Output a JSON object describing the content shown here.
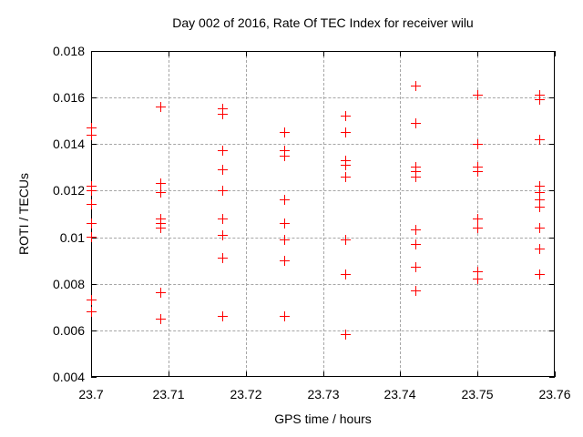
{
  "chart_data": {
    "type": "scatter",
    "title": "Day 002 of 2016, Rate Of TEC Index for receiver wilu",
    "xlabel": "GPS time / hours",
    "ylabel": "ROTI / TECUs",
    "xlim": [
      23.7,
      23.76
    ],
    "ylim": [
      0.004,
      0.018
    ],
    "xticks": [
      23.7,
      23.71,
      23.72,
      23.73,
      23.74,
      23.75,
      23.76
    ],
    "xtick_labels": [
      "23.7",
      "23.71",
      "23.72",
      "23.73",
      "23.74",
      "23.75",
      "23.76"
    ],
    "yticks": [
      0.004,
      0.006,
      0.008,
      0.01,
      0.012,
      0.014,
      0.016,
      0.018
    ],
    "ytick_labels": [
      "0.004",
      "0.006",
      "0.008",
      "0.01",
      "0.012",
      "0.014",
      "0.016",
      "0.018"
    ],
    "grid": true,
    "legend_position": "none",
    "marker": "plus",
    "marker_color": "#ff0000",
    "grid_color": "#a6a6a6",
    "axis_color": "#000000",
    "series": [
      {
        "name": "ROTI",
        "points": [
          [
            23.7,
            0.0147
          ],
          [
            23.7,
            0.0144
          ],
          [
            23.7,
            0.0122
          ],
          [
            23.7,
            0.012
          ],
          [
            23.7,
            0.0114
          ],
          [
            23.7,
            0.0106
          ],
          [
            23.7,
            0.01
          ],
          [
            23.7,
            0.0073
          ],
          [
            23.7,
            0.0068
          ],
          [
            23.709,
            0.0156
          ],
          [
            23.709,
            0.0123
          ],
          [
            23.709,
            0.0119
          ],
          [
            23.709,
            0.0108
          ],
          [
            23.709,
            0.0106
          ],
          [
            23.709,
            0.0104
          ],
          [
            23.709,
            0.0076
          ],
          [
            23.709,
            0.0065
          ],
          [
            23.717,
            0.0155
          ],
          [
            23.717,
            0.0153
          ],
          [
            23.717,
            0.0137
          ],
          [
            23.717,
            0.0129
          ],
          [
            23.717,
            0.012
          ],
          [
            23.717,
            0.0108
          ],
          [
            23.717,
            0.0101
          ],
          [
            23.717,
            0.0091
          ],
          [
            23.717,
            0.0066
          ],
          [
            23.725,
            0.0145
          ],
          [
            23.725,
            0.0137
          ],
          [
            23.725,
            0.0135
          ],
          [
            23.725,
            0.0116
          ],
          [
            23.725,
            0.0106
          ],
          [
            23.725,
            0.0099
          ],
          [
            23.725,
            0.009
          ],
          [
            23.725,
            0.0066
          ],
          [
            23.733,
            0.0152
          ],
          [
            23.733,
            0.0145
          ],
          [
            23.733,
            0.0133
          ],
          [
            23.733,
            0.0131
          ],
          [
            23.733,
            0.0126
          ],
          [
            23.733,
            0.0099
          ],
          [
            23.733,
            0.0084
          ],
          [
            23.733,
            0.0058
          ],
          [
            23.742,
            0.0165
          ],
          [
            23.742,
            0.0149
          ],
          [
            23.742,
            0.013
          ],
          [
            23.742,
            0.0128
          ],
          [
            23.742,
            0.0126
          ],
          [
            23.742,
            0.0103
          ],
          [
            23.742,
            0.0097
          ],
          [
            23.742,
            0.0087
          ],
          [
            23.742,
            0.0077
          ],
          [
            23.75,
            0.0161
          ],
          [
            23.75,
            0.014
          ],
          [
            23.75,
            0.013
          ],
          [
            23.75,
            0.0128
          ],
          [
            23.75,
            0.0108
          ],
          [
            23.75,
            0.0104
          ],
          [
            23.75,
            0.0085
          ],
          [
            23.75,
            0.0082
          ],
          [
            23.758,
            0.0161
          ],
          [
            23.758,
            0.0159
          ],
          [
            23.758,
            0.0142
          ],
          [
            23.758,
            0.0122
          ],
          [
            23.758,
            0.0119
          ],
          [
            23.758,
            0.0116
          ],
          [
            23.758,
            0.0113
          ],
          [
            23.758,
            0.0104
          ],
          [
            23.758,
            0.0095
          ],
          [
            23.758,
            0.0084
          ]
        ]
      }
    ]
  }
}
